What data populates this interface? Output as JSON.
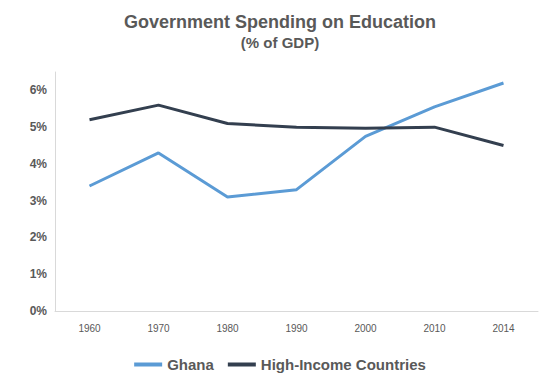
{
  "chart_data": {
    "type": "line",
    "title": "Government Spending on Education",
    "subtitle": "(% of GDP)",
    "categories": [
      "1960",
      "1970",
      "1980",
      "1990",
      "2000",
      "2010",
      "2014"
    ],
    "series": [
      {
        "name": "Ghana",
        "color": "#5b9bd5",
        "values": [
          3.4,
          4.3,
          3.1,
          3.3,
          4.75,
          5.55,
          6.2
        ]
      },
      {
        "name": "High-Income Countries",
        "color": "#333f4f",
        "values": [
          5.2,
          5.6,
          5.1,
          5.0,
          4.97,
          5.0,
          4.5
        ]
      }
    ],
    "ylim": [
      0,
      6.5
    ],
    "yticks": [
      {
        "value": 0,
        "label": "0%"
      },
      {
        "value": 1,
        "label": "1%"
      },
      {
        "value": 2,
        "label": "2%"
      },
      {
        "value": 3,
        "label": "3%"
      },
      {
        "value": 4,
        "label": "4%"
      },
      {
        "value": 5,
        "label": "5%"
      },
      {
        "value": 6,
        "label": "6%"
      }
    ],
    "grid": false,
    "legend": "bottom"
  }
}
